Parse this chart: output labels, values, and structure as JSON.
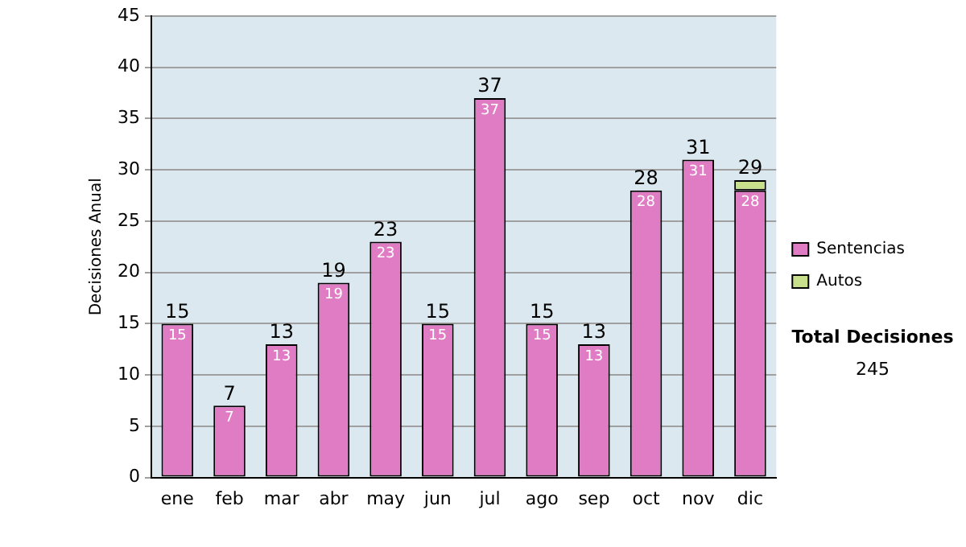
{
  "chart_data": {
    "type": "bar",
    "stacked": true,
    "ylabel": "Decisiones Anual",
    "categories": [
      "ene",
      "feb",
      "mar",
      "abr",
      "may",
      "jun",
      "jul",
      "ago",
      "sep",
      "oct",
      "nov",
      "dic"
    ],
    "series": [
      {
        "name": "Sentencias",
        "color": "#e07cc4",
        "values": [
          15,
          7,
          13,
          19,
          23,
          15,
          37,
          15,
          13,
          28,
          31,
          28
        ],
        "value_labels": [
          "15",
          "7",
          "13",
          "19",
          "23",
          "15",
          "37",
          "15",
          "13",
          "28",
          "31",
          "28"
        ]
      },
      {
        "name": "Autos",
        "color": "#c8e08c",
        "values": [
          0,
          0,
          0,
          0,
          0,
          0,
          0,
          0,
          0,
          0,
          0,
          1
        ]
      }
    ],
    "totals": [
      "15",
      "7",
      "13",
      "19",
      "23",
      "15",
      "37",
      "15",
      "13",
      "28",
      "31",
      "29"
    ],
    "ylim": [
      0,
      45
    ],
    "yticks": [
      0,
      5,
      10,
      15,
      20,
      25,
      30,
      35,
      40,
      45
    ],
    "grid": "y",
    "legend": "right",
    "annotations": [
      "Total Decisiones",
      "245"
    ]
  }
}
